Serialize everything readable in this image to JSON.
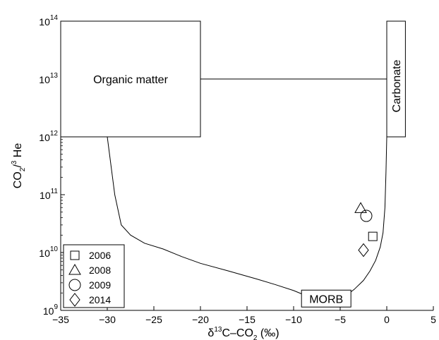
{
  "chart_data": {
    "type": "scatter",
    "title": "",
    "xlabel": {
      "prefix": "δ",
      "sup": "13",
      "main": "C–CO",
      "sub": "2",
      "unit": " (‰)"
    },
    "ylabel": {
      "main": "CO",
      "sub": "2",
      "mid": "/",
      "sup": "3",
      "tail": " He"
    },
    "xlim": [
      -35,
      5
    ],
    "ylim": [
      1000000000.0,
      100000000000000.0
    ],
    "yscale": "log",
    "x_ticks": [
      -35,
      -30,
      -25,
      -20,
      -15,
      -10,
      -5,
      0,
      5
    ],
    "y_ticks": [
      {
        "value": 1000000000.0,
        "base": "10",
        "exp": "9"
      },
      {
        "value": 10000000000.0,
        "base": "10",
        "exp": "10"
      },
      {
        "value": 100000000000.0,
        "base": "10",
        "exp": "11"
      },
      {
        "value": 1000000000000.0,
        "base": "10",
        "exp": "12"
      },
      {
        "value": 10000000000000.0,
        "base": "10",
        "exp": "13"
      },
      {
        "value": 100000000000000.0,
        "base": "10",
        "exp": "14"
      }
    ],
    "grid": false,
    "legend_position": "bottom-left",
    "series": [
      {
        "name": "2006",
        "marker": "square",
        "points": [
          {
            "x": -1.5,
            "y": 19000000000.0
          }
        ]
      },
      {
        "name": "2008",
        "marker": "triangle",
        "points": [
          {
            "x": -2.8,
            "y": 58000000000.0
          }
        ]
      },
      {
        "name": "2009",
        "marker": "circle",
        "points": [
          {
            "x": -2.2,
            "y": 43000000000.0
          }
        ]
      },
      {
        "name": "2014",
        "marker": "diamond",
        "points": [
          {
            "x": -2.5,
            "y": 11000000000.0
          }
        ]
      }
    ],
    "end_members": [
      {
        "name": "Organic matter",
        "x_range": [
          -35,
          -20
        ],
        "y_range": [
          1000000000000.0,
          100000000000000.0
        ]
      },
      {
        "name": "Carbonate",
        "x_range": [
          0,
          2
        ],
        "y_range": [
          1000000000000.0,
          100000000000000.0
        ],
        "label_rotation": "vertical"
      },
      {
        "name": "MORB",
        "x": -6.5,
        "y": 1600000000.0
      }
    ],
    "mixing_curves": [
      {
        "from": "Organic matter",
        "to": "MORB",
        "points": [
          [
            -30,
            1000000000000.0
          ],
          [
            -29.2,
            100000000000.0
          ],
          [
            -28.5,
            30000000000.0
          ],
          [
            -27.5,
            20000000000.0
          ],
          [
            -26,
            14500000000.0
          ],
          [
            -24,
            11500000000.0
          ],
          [
            -22,
            8500000000.0
          ],
          [
            -20,
            6500000000.0
          ],
          [
            -17,
            4800000000.0
          ],
          [
            -14,
            3500000000.0
          ],
          [
            -12,
            2800000000.0
          ],
          [
            -10,
            2200000000.0
          ],
          [
            -8.3,
            1700000000.0
          ]
        ]
      },
      {
        "from": "MORB",
        "to": "Carbonate",
        "points": [
          [
            -4.8,
            1600000000.0
          ],
          [
            -3.5,
            2300000000.0
          ],
          [
            -2.5,
            3300000000.0
          ],
          [
            -1.8,
            4800000000.0
          ],
          [
            -1.2,
            7300000000.0
          ],
          [
            -0.7,
            12500000000.0
          ],
          [
            -0.4,
            22000000000.0
          ],
          [
            -0.2,
            60000000000.0
          ],
          [
            -0.08,
            250000000000.0
          ],
          [
            0,
            1000000000000.0
          ]
        ]
      },
      {
        "from": "Organic matter",
        "to": "Carbonate",
        "points": [
          [
            -20,
            10000000000000.0
          ],
          [
            0,
            10000000000000.0
          ]
        ]
      }
    ]
  }
}
